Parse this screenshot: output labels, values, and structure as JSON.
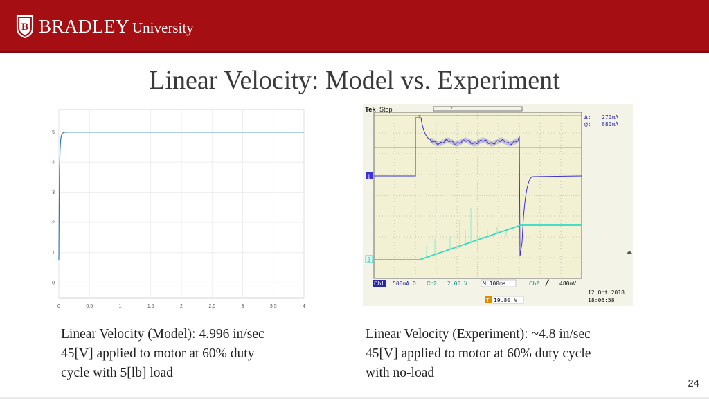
{
  "header": {
    "logo_bradley": "BRADLEY",
    "logo_university": "University",
    "logo_icon": "bradley-shield-icon",
    "bar_color": "#a50e13"
  },
  "slide": {
    "title": "Linear Velocity: Model vs. Experiment",
    "page_number": "24"
  },
  "chart_data": [
    {
      "type": "line",
      "x_ticks": [
        "0",
        "0.5",
        "1",
        "1.5",
        "2",
        "2.5",
        "3",
        "3.5",
        "4"
      ],
      "y_ticks": [
        "0",
        "1",
        "2",
        "3",
        "4",
        "5"
      ],
      "xlim": [
        0,
        4
      ],
      "ylim": [
        -0.5,
        5.75
      ],
      "grid": true,
      "series": [
        {
          "color": "#2f78b5",
          "x": [
            0.0,
            0.005,
            0.01,
            0.02,
            0.03,
            0.04,
            0.05,
            0.06,
            0.08,
            0.1,
            0.15,
            0.2,
            4.0
          ],
          "y": [
            0.75,
            2.4,
            3.7,
            4.45,
            4.75,
            4.87,
            4.93,
            4.96,
            4.985,
            4.994,
            4.996,
            4.996,
            4.996
          ]
        }
      ]
    }
  ],
  "scope": {
    "brand": "Tek",
    "state": "Stop",
    "delta_label": "Δ:",
    "delta_value": "270mA",
    "at_label": "@:",
    "at_value": "680mA",
    "ch1_label": "Ch1",
    "ch1_scale": "500mA Ω",
    "ch2_label": "Ch2",
    "ch2_scale": "2.00 V",
    "timebase": "M 100ms",
    "trigger_ch": "Ch2",
    "trigger_level": "480mV",
    "date": "12 Oct  2018",
    "time": "18:06:58",
    "trigger_pos": "19.80 %",
    "marker_1": "1",
    "marker_2": "2",
    "ch1_color": "#3b2fd6",
    "ch2_color": "#31dcc4"
  },
  "captions": {
    "left": [
      "Linear Velocity (Model): 4.996 in/sec",
      "45[V] applied to motor at 60% duty",
      "cycle with 5[lb] load"
    ],
    "right": [
      "Linear Velocity (Experiment): ~4.8 in/sec",
      "45[V] applied to motor at 60% duty cycle",
      "with no-load"
    ]
  }
}
